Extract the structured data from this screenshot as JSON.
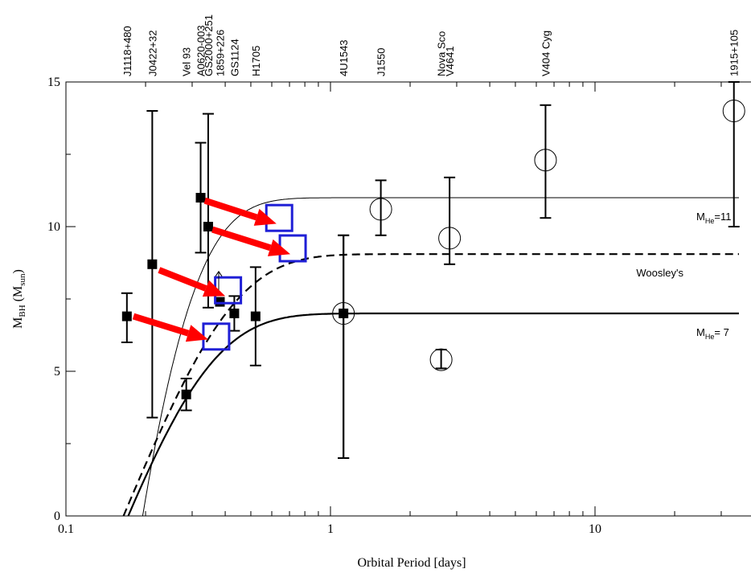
{
  "chart_data": {
    "type": "scatter",
    "title": "",
    "xlabel": "Orbital Period [days]",
    "ylabel_main": "M",
    "ylabel_sub": "BH",
    "ylabel_unit_open": " (M",
    "ylabel_unit_sub": "sun",
    "ylabel_unit_close": ")",
    "xscale": "log",
    "xlim": [
      0.1,
      35
    ],
    "ylim": [
      0,
      15
    ],
    "grid": false,
    "xticks": [
      {
        "value": 0.1,
        "label": "0.1"
      },
      {
        "value": 1,
        "label": "1"
      },
      {
        "value": 10,
        "label": "10"
      }
    ],
    "yticks": [
      {
        "value": 0,
        "label": "0"
      },
      {
        "value": 5,
        "label": "5"
      },
      {
        "value": 10,
        "label": "10"
      },
      {
        "value": 15,
        "label": "15"
      }
    ],
    "top_labels": [
      {
        "text": "J1118+480",
        "x": 0.17
      },
      {
        "text": "J0422+32",
        "x": 0.212
      },
      {
        "text": "Vel 93",
        "x": 0.285
      },
      {
        "text": "A0620-003",
        "x": 0.323
      },
      {
        "text": "GS2000+251",
        "x": 0.345
      },
      {
        "text": "1859+226",
        "x": 0.382
      },
      {
        "text": "GS1124",
        "x": 0.433
      },
      {
        "text": "H1705",
        "x": 0.521
      },
      {
        "text": "4U1543",
        "x": 1.12
      },
      {
        "text": "J1550",
        "x": 1.55
      },
      {
        "text": "Nova Sco",
        "x": 2.62
      },
      {
        "text": "V4641",
        "x": 2.82
      },
      {
        "text": "V404 Cyg",
        "x": 6.5
      },
      {
        "text": "1915+105",
        "x": 33.5
      }
    ],
    "series": [
      {
        "marker": "filled-square",
        "color": "#000000",
        "points": [
          {
            "x": 0.17,
            "y": 6.9,
            "ylo": 6.0,
            "yhi": 7.7
          },
          {
            "x": 0.212,
            "y": 8.7,
            "ylo": 3.4,
            "yhi": 14.0
          },
          {
            "x": 0.285,
            "y": 4.2,
            "ylo": 3.65,
            "yhi": 4.75
          },
          {
            "x": 0.323,
            "y": 11.0,
            "ylo": 9.1,
            "yhi": 12.9
          },
          {
            "x": 0.345,
            "y": 10.0,
            "ylo": 7.2,
            "yhi": 13.9
          },
          {
            "x": 0.382,
            "y": 7.4,
            "ylo": 7.4,
            "yhi": 7.4
          },
          {
            "x": 0.433,
            "y": 7.0,
            "ylo": 6.4,
            "yhi": 7.6
          },
          {
            "x": 0.521,
            "y": 6.9,
            "ylo": 5.2,
            "yhi": 8.6
          },
          {
            "x": 1.12,
            "y": 7.0,
            "ylo": 2.0,
            "yhi": 9.7
          }
        ]
      },
      {
        "marker": "open-circle",
        "color": "#000000",
        "points": [
          {
            "x": 1.12,
            "y": 7.0,
            "ylo": 2.0,
            "yhi": 9.7
          },
          {
            "x": 1.55,
            "y": 10.6,
            "ylo": 9.7,
            "yhi": 11.6
          },
          {
            "x": 2.82,
            "y": 9.6,
            "ylo": 8.7,
            "yhi": 11.7
          },
          {
            "x": 6.5,
            "y": 12.3,
            "ylo": 10.3,
            "yhi": 14.2
          },
          {
            "x": 33.5,
            "y": 14.0,
            "ylo": 10.0,
            "yhi": 15.0
          },
          {
            "x": 2.62,
            "y": 5.4,
            "ylo": 5.1,
            "yhi": 5.75
          }
        ]
      },
      {
        "marker": "open-square",
        "color": "#1f1fd6",
        "points": [
          {
            "x": 0.37,
            "y": 6.2
          },
          {
            "x": 0.41,
            "y": 7.8
          },
          {
            "x": 0.64,
            "y": 10.3
          },
          {
            "x": 0.72,
            "y": 9.25
          }
        ]
      }
    ],
    "arrows": [
      {
        "color": "#ff0000",
        "from": [
          0.18,
          6.9
        ],
        "to": [
          0.345,
          6.1
        ]
      },
      {
        "color": "#ff0000",
        "from": [
          0.225,
          8.5
        ],
        "to": [
          0.4,
          7.6
        ]
      },
      {
        "color": "#ff0000",
        "from": [
          0.335,
          10.9
        ],
        "to": [
          0.625,
          10.1
        ]
      },
      {
        "color": "#ff0000",
        "from": [
          0.358,
          9.9
        ],
        "to": [
          0.705,
          9.05
        ]
      }
    ],
    "curves": [
      {
        "label": "M",
        "label_sub": "He",
        "label_value": "=11",
        "plateau": 11,
        "x0": 0.195,
        "tau": 0.09,
        "style": "thin"
      },
      {
        "label": "Woosley's",
        "plateau": 9.05,
        "x0": 0.165,
        "tau": 0.16,
        "style": "dashed"
      },
      {
        "label": "M",
        "label_sub": "He",
        "label_value": "= 7",
        "plateau": 7.0,
        "x0": 0.172,
        "tau": 0.13,
        "style": "thick"
      }
    ],
    "annotation": {
      "marker": "small-up-arrow",
      "x": 0.378,
      "y_from": 7.75,
      "y_to": 8.45
    }
  }
}
